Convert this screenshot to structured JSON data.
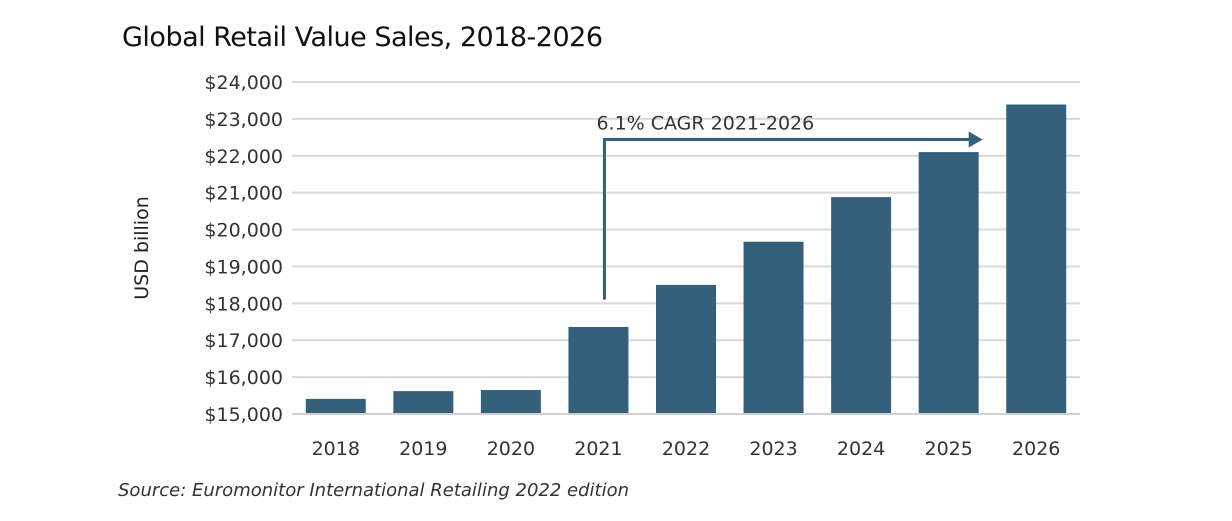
{
  "chart_data": {
    "type": "bar",
    "title": "Global Retail Value Sales, 2018-2026",
    "ylabel": "USD billion",
    "xlabel": "",
    "categories": [
      "2018",
      "2019",
      "2020",
      "2021",
      "2022",
      "2023",
      "2024",
      "2025",
      "2026"
    ],
    "values": [
      15410,
      15620,
      15650,
      17360,
      18500,
      19670,
      20880,
      22100,
      23390
    ],
    "ylim": [
      15000,
      24000
    ],
    "yticks": [
      "$15,000",
      "$16,000",
      "$17,000",
      "$18,000",
      "$19,000",
      "$20,000",
      "$21,000",
      "$22,000",
      "$23,000",
      "$24,000"
    ],
    "grid": true,
    "bar_color": "#35607c",
    "annotation": {
      "text": "6.1% CAGR 2021-2026",
      "from": "2021",
      "to": "2025"
    },
    "source": "Source: Euromonitor International Retailing 2022 edition"
  }
}
